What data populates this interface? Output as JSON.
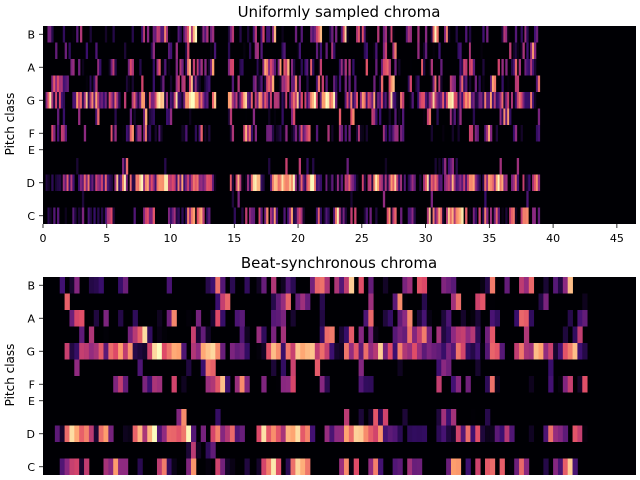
{
  "colors": {
    "colormap": "magma",
    "background": "#000004",
    "stops": [
      "#000004",
      "#3b0f70",
      "#8c2981",
      "#de4968",
      "#fe9f6d",
      "#fcfdbf"
    ]
  },
  "chart_data": [
    {
      "type": "heatmap",
      "title": "Uniformly sampled chroma",
      "ylabel": "Pitch class",
      "xlabel": "",
      "xlim": [
        0,
        46.5
      ],
      "xticks": [
        "0",
        "5",
        "10",
        "15",
        "20",
        "25",
        "30",
        "35",
        "40",
        "45"
      ],
      "xtick_values": [
        0,
        5,
        10,
        15,
        20,
        25,
        30,
        35,
        40,
        45
      ],
      "rows": [
        "C",
        "C#",
        "D",
        "D#",
        "E",
        "F",
        "F#",
        "G",
        "G#",
        "A",
        "A#",
        "B"
      ],
      "ytick_labels": [
        "C",
        "D",
        "E",
        "F",
        "G",
        "A",
        "B"
      ],
      "ytick_rows": [
        0,
        2,
        4,
        5,
        7,
        9,
        11
      ],
      "row_activity": [
        0.55,
        0.2,
        0.75,
        0.25,
        0.05,
        0.45,
        0.35,
        0.7,
        0.45,
        0.5,
        0.35,
        0.45
      ],
      "active_spans": [
        [
          0.2,
          13.5
        ],
        [
          14.5,
          38.9
        ]
      ],
      "resolution": 0.15,
      "seed": 17
    },
    {
      "type": "heatmap",
      "title": "Beat-synchronous chroma",
      "ylabel": "Pitch class",
      "xlabel": "",
      "xlim": [
        0,
        1
      ],
      "xticks": [],
      "rows": [
        "C",
        "C#",
        "D",
        "D#",
        "E",
        "F",
        "F#",
        "G",
        "G#",
        "A",
        "A#",
        "B"
      ],
      "ytick_labels": [
        "C",
        "D",
        "E",
        "F",
        "G",
        "A",
        "B"
      ],
      "ytick_rows": [
        0,
        2,
        4,
        5,
        7,
        9,
        11
      ],
      "row_activity": [
        0.55,
        0.2,
        0.75,
        0.3,
        0.05,
        0.5,
        0.35,
        0.75,
        0.5,
        0.5,
        0.35,
        0.45
      ],
      "active_spans": [
        [
          0.02,
          0.34
        ],
        [
          0.36,
          0.91
        ]
      ],
      "resolution": 0.0082,
      "seed": 29
    }
  ]
}
